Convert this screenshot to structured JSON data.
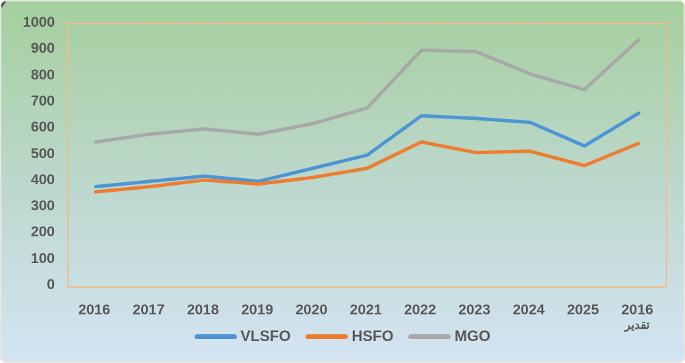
{
  "chart_data": {
    "type": "line",
    "title": "",
    "categories": [
      "2016",
      "2017",
      "2018",
      "2019",
      "2020",
      "2021",
      "2022",
      "2023",
      "2024",
      "2025",
      "2016"
    ],
    "last_category_note": "تقدير",
    "y_ticks": [
      0,
      100,
      200,
      300,
      400,
      500,
      600,
      700,
      800,
      900,
      1000
    ],
    "ylim": [
      0,
      1000
    ],
    "grid": false,
    "legend_position": "bottom",
    "series": [
      {
        "name": "VLSFO",
        "color": "#4e95d4",
        "values": [
          380,
          400,
          420,
          400,
          450,
          500,
          650,
          640,
          625,
          535,
          660
        ]
      },
      {
        "name": "HSFO",
        "color": "#ed7d31",
        "values": [
          360,
          380,
          405,
          390,
          415,
          450,
          550,
          510,
          515,
          460,
          545
        ]
      },
      {
        "name": "MGO",
        "color": "#a8a8a8",
        "values": [
          550,
          580,
          600,
          580,
          620,
          680,
          900,
          895,
          810,
          750,
          940
        ]
      }
    ],
    "colors": {
      "axis_text": "#595959",
      "plot_border": "#f3bc86",
      "bg_top": "#a5cf9d",
      "bg_mid": "#bdd8ce",
      "bg_bottom": "#d4e4f3"
    }
  }
}
